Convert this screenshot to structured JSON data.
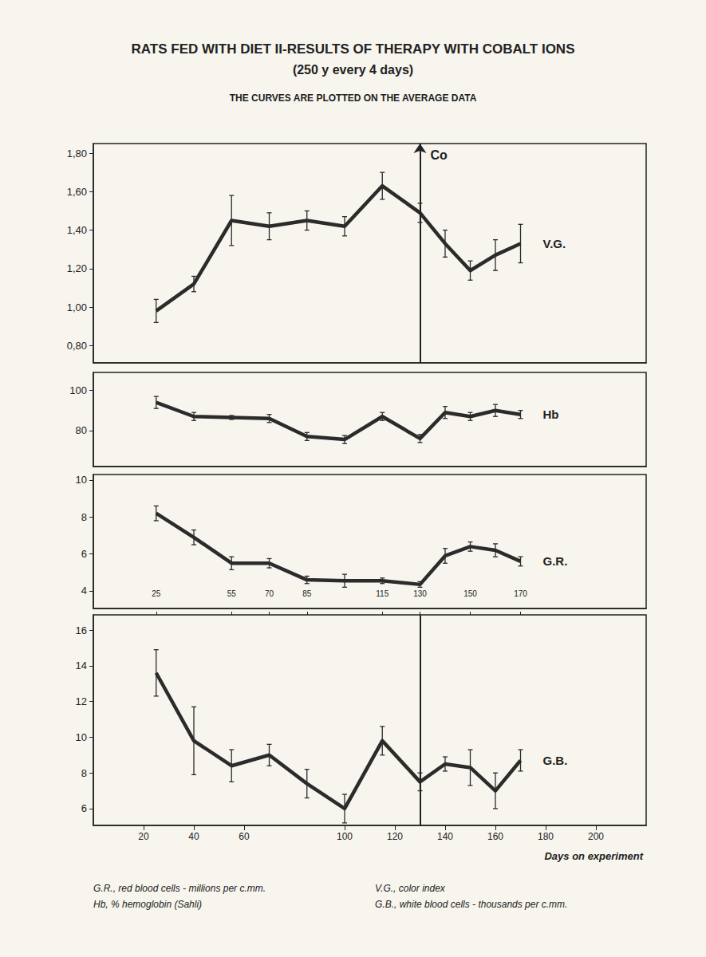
{
  "title": "RATS FED WITH DIET II-RESULTS OF THERAPY WITH COBALT IONS",
  "subtitle": "(250 y every 4 days)",
  "note": "THE CURVES ARE PLOTTED ON THE AVERAGE DATA",
  "notes": [
    "G.R., red blood cells - millions per c.mm.",
    "Hb, % hemoglobin (Sahli)",
    "V.G., color index",
    "G.B., white blood cells - thousands per c.mm."
  ],
  "chart_data": [
    {
      "type": "line",
      "x": [
        25,
        40,
        55,
        70,
        85,
        100,
        115,
        130,
        140,
        150,
        160,
        170
      ],
      "series": [
        {
          "name": "V.G.",
          "color": "#2b2b2b",
          "values": [
            0.98,
            1.12,
            1.45,
            1.42,
            1.45,
            1.42,
            1.63,
            1.49,
            1.33,
            1.19,
            1.27,
            1.33
          ],
          "errors": [
            0.06,
            0.04,
            0.13,
            0.07,
            0.05,
            0.05,
            0.07,
            0.05,
            0.07,
            0.05,
            0.08,
            0.1
          ]
        }
      ],
      "xlim": [
        0,
        220
      ],
      "ylim": [
        0.71,
        1.85
      ],
      "yticks": [
        {
          "value": 0.8,
          "label": "0,80"
        },
        {
          "value": 1.0,
          "label": "1,00"
        },
        {
          "value": 1.2,
          "label": "1,20"
        },
        {
          "value": 1.4,
          "label": "1,40"
        },
        {
          "value": 1.6,
          "label": "1,60"
        },
        {
          "value": 1.8,
          "label": "1,80"
        }
      ],
      "annotations": [
        {
          "text": "Co",
          "x": 130
        }
      ],
      "grid": false,
      "tick_labels": "y"
    },
    {
      "type": "line",
      "x": [
        25,
        40,
        55,
        70,
        85,
        100,
        115,
        130,
        140,
        150,
        160,
        170
      ],
      "series": [
        {
          "name": "Hb",
          "color": "#2b2b2b",
          "values": [
            94,
            87,
            86.5,
            86,
            77,
            75.5,
            87,
            76,
            89,
            87,
            90,
            88
          ],
          "errors": [
            3,
            2,
            1,
            2,
            2,
            2,
            2,
            2,
            3,
            2,
            3,
            2
          ]
        }
      ],
      "xlim": [
        0,
        220
      ],
      "ylim": [
        62,
        109
      ],
      "yticks": [
        80,
        100
      ],
      "grid": false,
      "tick_labels": "y"
    },
    {
      "type": "line",
      "x": [
        25,
        40,
        55,
        70,
        85,
        100,
        115,
        130,
        140,
        150,
        160,
        170
      ],
      "series": [
        {
          "name": "G.R.",
          "color": "#2b2b2b",
          "values": [
            8.2,
            6.9,
            5.5,
            5.5,
            4.6,
            4.55,
            4.55,
            4.35,
            5.9,
            6.4,
            6.2,
            5.6
          ],
          "errors": [
            0.4,
            0.4,
            0.35,
            0.25,
            0.2,
            0.35,
            0.15,
            0.15,
            0.4,
            0.25,
            0.35,
            0.25
          ]
        }
      ],
      "xlim": [
        0,
        220
      ],
      "ylim": [
        3.05,
        10.3
      ],
      "yticks": [
        4,
        6,
        8,
        10
      ],
      "grid": false,
      "tick_labels": "y"
    },
    {
      "type": "line",
      "x": [
        25,
        40,
        55,
        70,
        85,
        100,
        115,
        130,
        140,
        150,
        160,
        170
      ],
      "series": [
        {
          "name": "G.B.",
          "color": "#2b2b2b",
          "values": [
            13.6,
            9.8,
            8.4,
            9.0,
            7.4,
            6.0,
            9.8,
            7.5,
            8.5,
            8.3,
            7.0,
            8.7
          ],
          "errors": [
            1.3,
            1.9,
            0.9,
            0.6,
            0.8,
            0.8,
            0.8,
            0.5,
            0.4,
            1.0,
            1.0,
            0.6
          ]
        }
      ],
      "xlim": [
        0,
        220
      ],
      "xticks": [
        20,
        25,
        40,
        55,
        60,
        70,
        85,
        100,
        115,
        120,
        130,
        140,
        150,
        160,
        170,
        180,
        200
      ],
      "ylim": [
        5.06,
        16.85
      ],
      "yticks": [
        6,
        8,
        10,
        12,
        14,
        16
      ],
      "vlines": [
        130
      ],
      "xlabel": "Days on experiment",
      "grid": false,
      "tick_labels": true
    }
  ]
}
